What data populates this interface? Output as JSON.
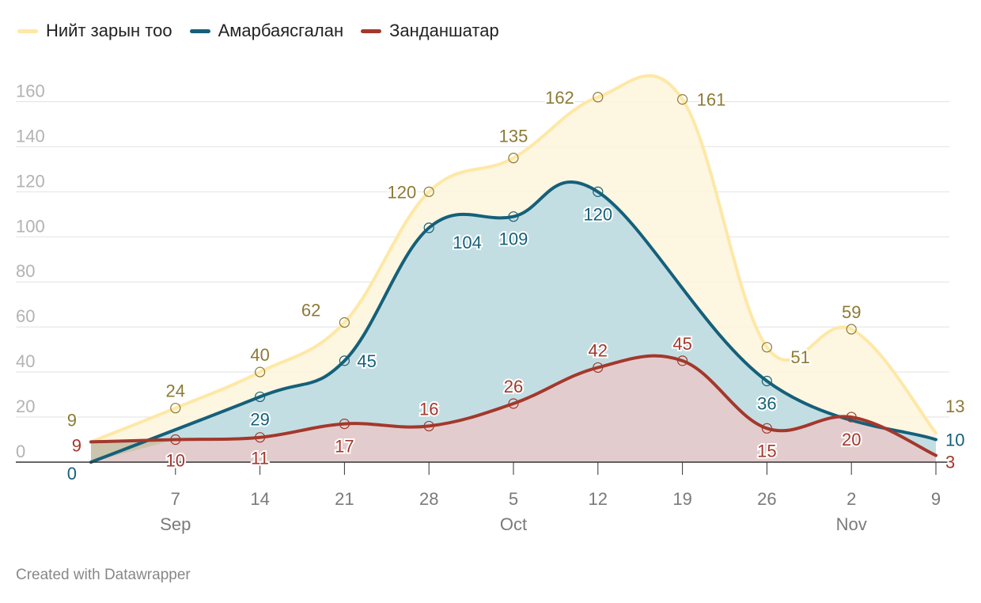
{
  "chart_data": {
    "type": "area",
    "x_axis": {
      "tick_labels": [
        "7",
        "14",
        "21",
        "28",
        "5",
        "12",
        "19",
        "26",
        "2",
        "9"
      ],
      "tick_days": [
        8,
        15,
        22,
        29,
        36,
        43,
        50,
        57,
        64,
        71
      ],
      "month_labels": [
        {
          "label": "Sep",
          "day": 8
        },
        {
          "label": "Oct",
          "day": 36
        },
        {
          "label": "Nov",
          "day": 64
        }
      ],
      "range_days": [
        1,
        71
      ]
    },
    "y_axis": {
      "min": 0,
      "max": 170,
      "ticks": [
        0,
        20,
        40,
        60,
        80,
        100,
        120,
        140,
        160
      ]
    },
    "series": [
      {
        "name": "Нийт зарын тоо",
        "color": "#fde8a6",
        "label_color": "#8d7a36",
        "fill": "#fdf5dc",
        "points": [
          {
            "day": 1,
            "value": 9
          },
          {
            "day": 8,
            "value": 24
          },
          {
            "day": 15,
            "value": 40
          },
          {
            "day": 22,
            "value": 62
          },
          {
            "day": 29,
            "value": 120
          },
          {
            "day": 36,
            "value": 135
          },
          {
            "day": 43,
            "value": 162
          },
          {
            "day": 50,
            "value": 161
          },
          {
            "day": 57,
            "value": 51
          },
          {
            "day": 64,
            "value": 59
          },
          {
            "day": 71,
            "value": 13
          }
        ]
      },
      {
        "name": "Амарбаясгалан",
        "color": "#15607a",
        "label_color": "#15607a",
        "fill": "#b8d9e2",
        "points": [
          {
            "day": 1,
            "value": 0
          },
          {
            "day": 15,
            "value": 29
          },
          {
            "day": 22,
            "value": 45
          },
          {
            "day": 29,
            "value": 104
          },
          {
            "day": 36,
            "value": 109
          },
          {
            "day": 43,
            "value": 120
          },
          {
            "day": 57,
            "value": 36
          },
          {
            "day": 71,
            "value": 10
          }
        ]
      },
      {
        "name": "Занданшатар",
        "color": "#a3382c",
        "label_color": "#a3382c",
        "fill": "#e9c9c9",
        "points": [
          {
            "day": 1,
            "value": 9
          },
          {
            "day": 8,
            "value": 10
          },
          {
            "day": 15,
            "value": 11
          },
          {
            "day": 22,
            "value": 17
          },
          {
            "day": 29,
            "value": 16
          },
          {
            "day": 36,
            "value": 26
          },
          {
            "day": 43,
            "value": 42
          },
          {
            "day": 50,
            "value": 45
          },
          {
            "day": 57,
            "value": 15
          },
          {
            "day": 64,
            "value": 20
          },
          {
            "day": 71,
            "value": 3
          }
        ]
      }
    ]
  },
  "credit": "Created with Datawrapper"
}
